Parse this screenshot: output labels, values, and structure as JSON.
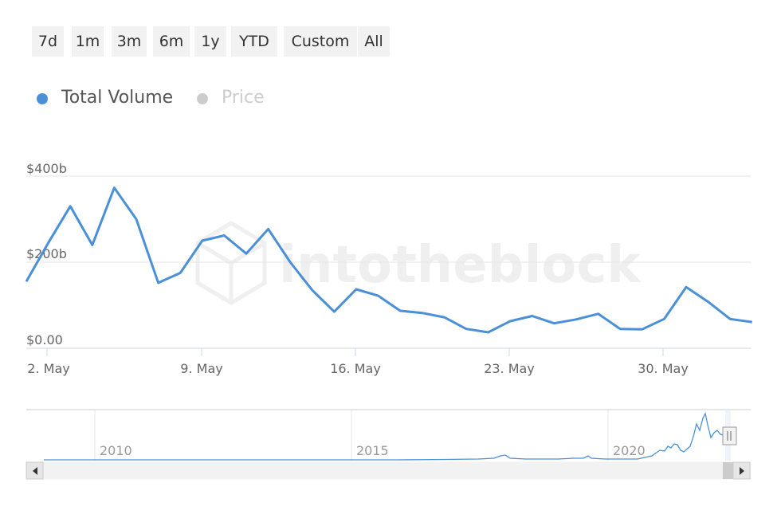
{
  "range_selector": {
    "buttons": [
      "7d",
      "1m",
      "3m",
      "6m",
      "1y",
      "YTD",
      "Custom",
      "All"
    ]
  },
  "legend": {
    "items": [
      {
        "label": "Total Volume",
        "color": "#4a90d9",
        "active": true
      },
      {
        "label": "Price",
        "color": "#cccccc",
        "active": false
      }
    ]
  },
  "watermark": "intotheblock",
  "chart_data": {
    "type": "line",
    "series": [
      {
        "name": "Total Volume",
        "color": "#4a90d9",
        "x": [
          "May 1",
          "May 2",
          "May 3",
          "May 4",
          "May 5",
          "May 6",
          "May 7",
          "May 8",
          "May 9",
          "May 10",
          "May 11",
          "May 12",
          "May 13",
          "May 14",
          "May 15",
          "May 16",
          "May 17",
          "May 18",
          "May 19",
          "May 20",
          "May 21",
          "May 22",
          "May 23",
          "May 24",
          "May 25",
          "May 26",
          "May 27",
          "May 28",
          "May 29",
          "May 30",
          "May 31",
          "Jun 1",
          "Jun 2",
          "Jun 3"
        ],
        "values": [
          155,
          245,
          330,
          240,
          373,
          300,
          152,
          175,
          250,
          262,
          220,
          277,
          200,
          135,
          85,
          137,
          122,
          87,
          82,
          72,
          45,
          37,
          63,
          75,
          58,
          67,
          80,
          45,
          44,
          68,
          142,
          108,
          68,
          61
        ]
      }
    ],
    "x_ticks": [
      "2. May",
      "9. May",
      "16. May",
      "23. May",
      "30. May"
    ],
    "y_ticks": [
      "$0.00",
      "$200b",
      "$400b"
    ],
    "y_tick_values": [
      0,
      200,
      400
    ],
    "ylim": [
      0,
      400
    ],
    "xlabel": "",
    "ylabel": "",
    "grid": true,
    "navigator": {
      "year_labels": [
        "2010",
        "2015",
        "2020"
      ]
    }
  }
}
